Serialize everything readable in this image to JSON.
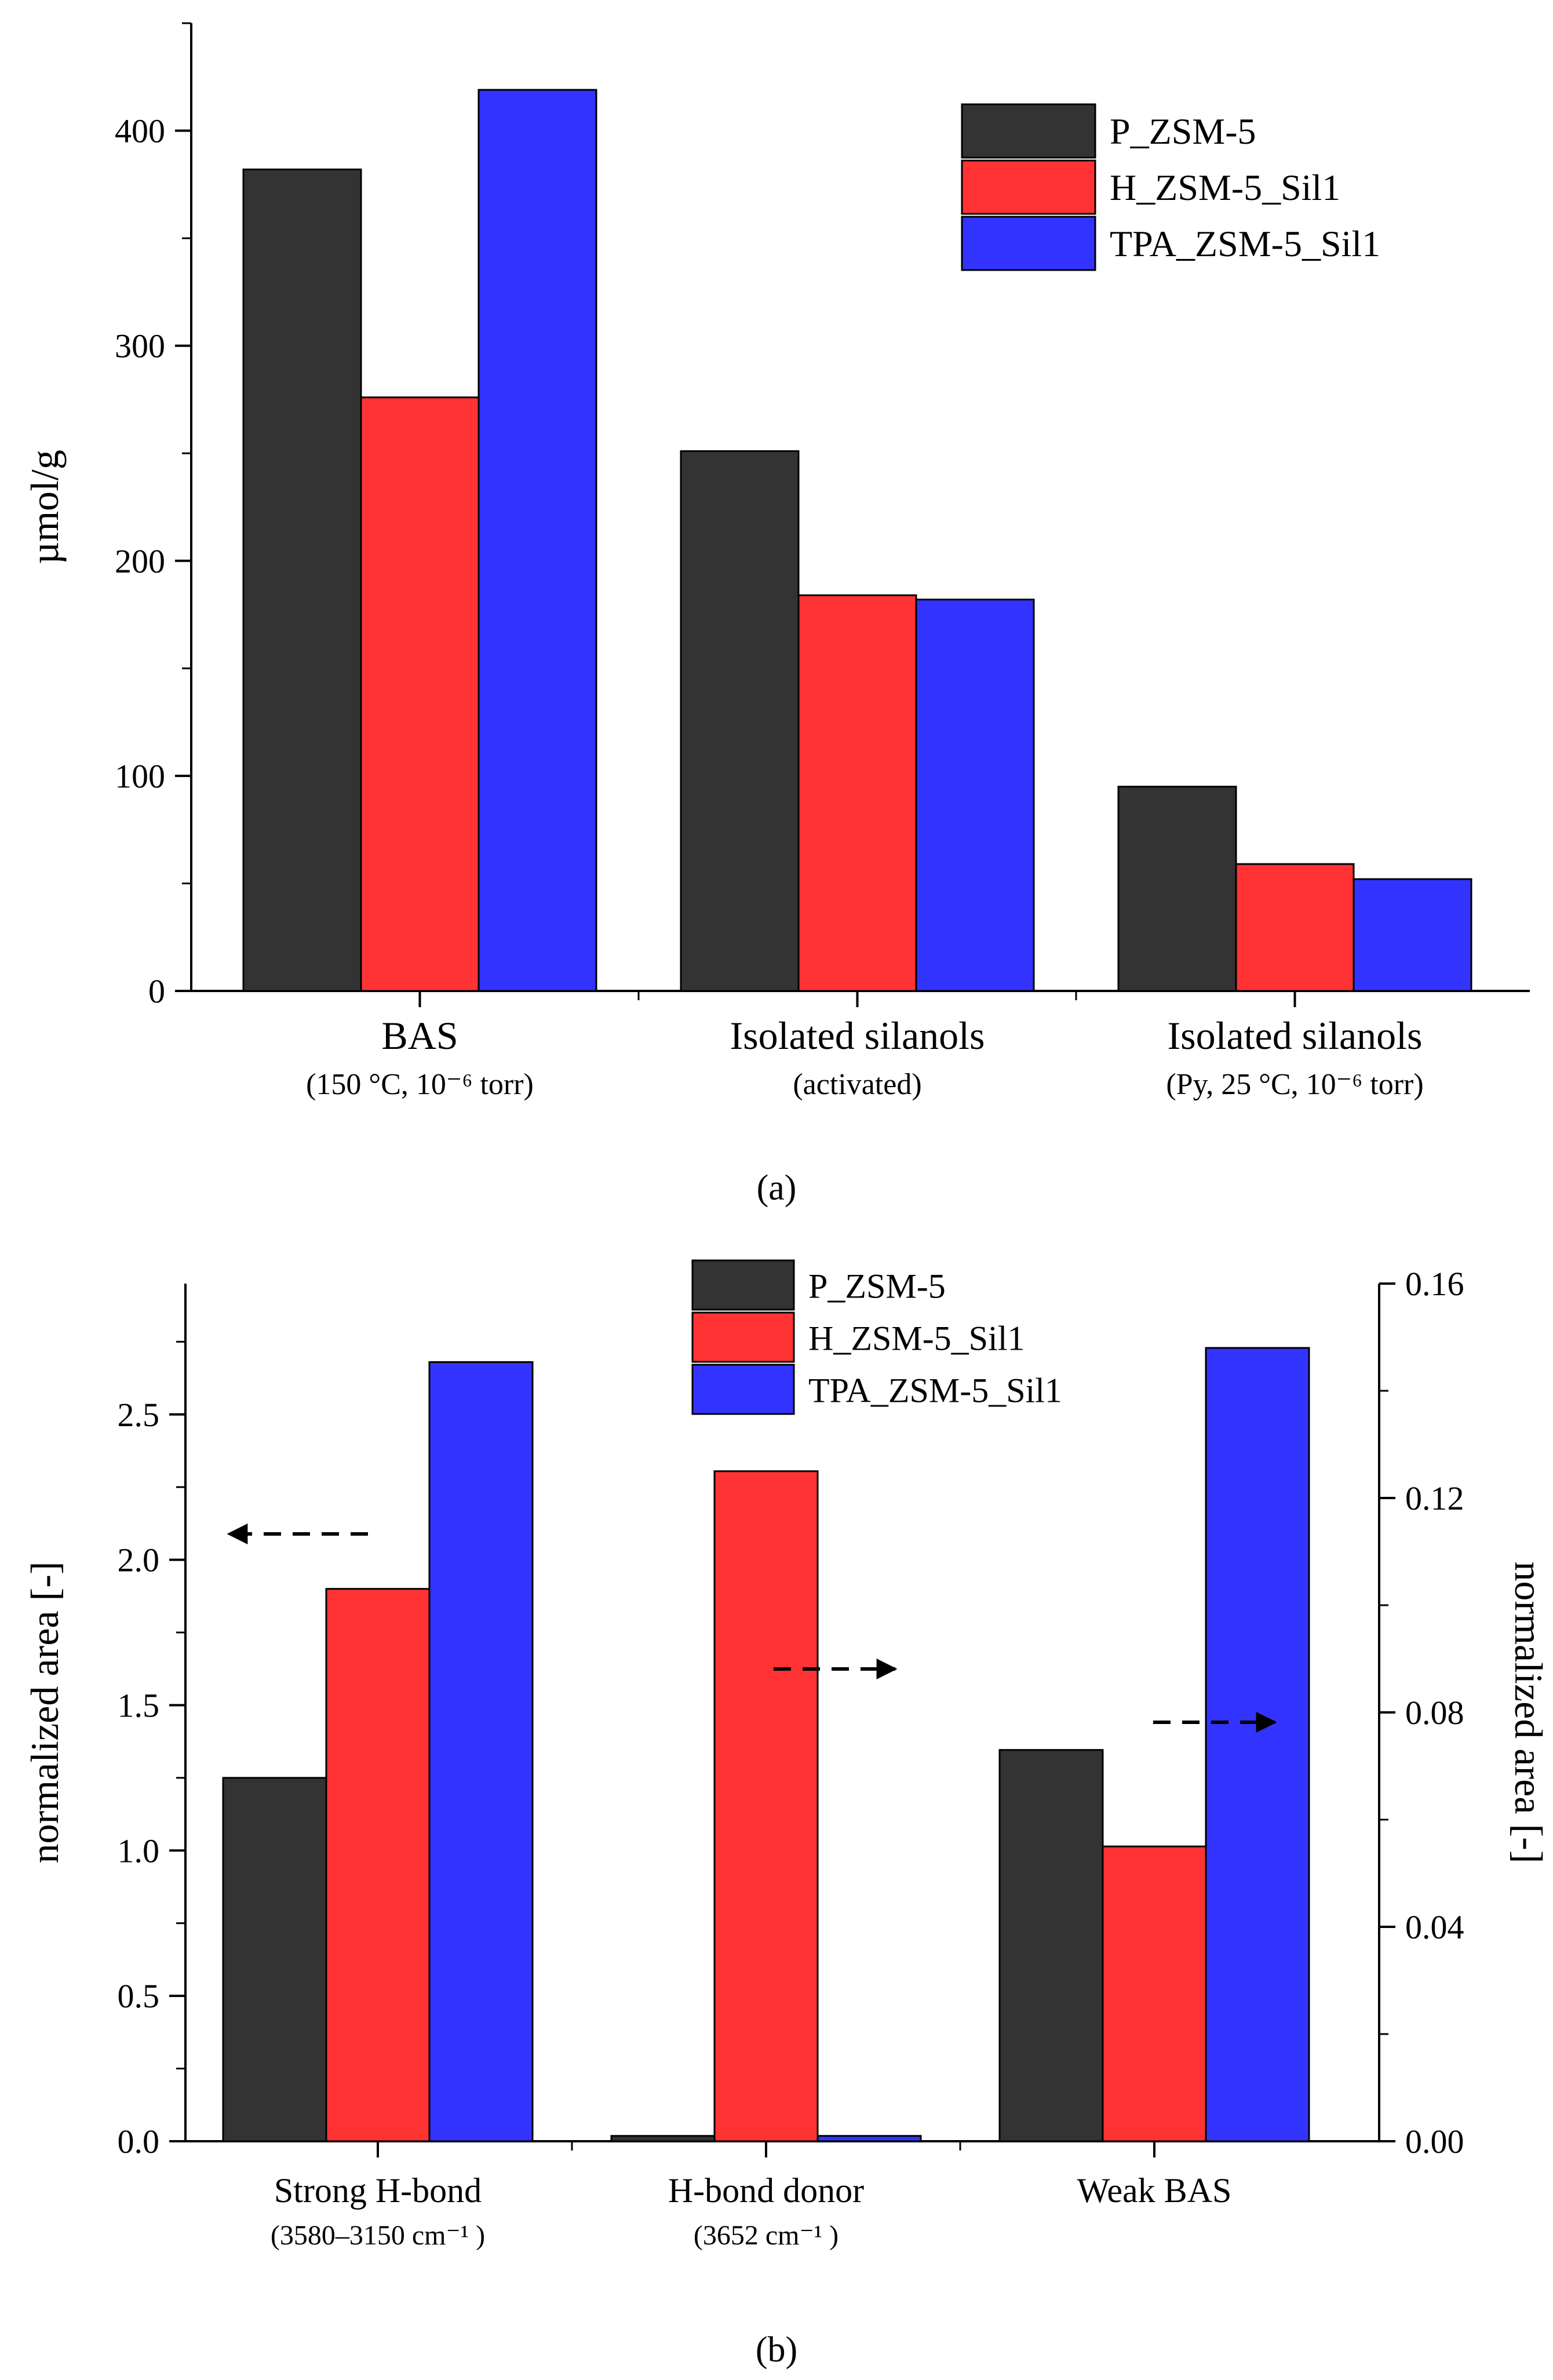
{
  "chart_data": [
    {
      "id": "a",
      "type": "bar",
      "panel_label": "(a)",
      "categories": [
        "BAS",
        "Isolated silanols",
        "Isolated silanols"
      ],
      "category_sublabels": [
        "(150 °C, 10⁻⁶ torr)",
        "(activated)",
        "(Py, 25 °C, 10⁻⁶ torr)"
      ],
      "series": [
        {
          "name": "P_ZSM-5",
          "color": "#333333",
          "values": [
            382,
            251,
            95
          ]
        },
        {
          "name": "H_ZSM-5_Sil1",
          "color": "#ff3333",
          "values": [
            276,
            184,
            59
          ]
        },
        {
          "name": "TPA_ZSM-5_Sil1",
          "color": "#3333ff",
          "values": [
            419,
            182,
            52
          ]
        }
      ],
      "ylabel": "µmol/g",
      "ylim": [
        0,
        450
      ],
      "yticks": [
        0,
        100,
        200,
        300,
        400
      ],
      "ytick_labels": [
        "0",
        "100",
        "200",
        "300",
        "400"
      ],
      "legend_position": "top-right",
      "grid": false
    },
    {
      "id": "b",
      "type": "bar",
      "panel_label": "(b)",
      "categories": [
        "Strong H-bond",
        "H-bond donor",
        "Weak BAS"
      ],
      "category_sublabels": [
        "(3580–3150 cm⁻¹ )",
        "(3652 cm⁻¹ )",
        ""
      ],
      "series": [
        {
          "name": "P_ZSM-5",
          "color": "#333333",
          "values": [
            1.25,
            0.001,
            0.073
          ]
        },
        {
          "name": "H_ZSM-5_Sil1",
          "color": "#ff3333",
          "values": [
            1.9,
            0.125,
            0.055
          ]
        },
        {
          "name": "TPA_ZSM-5_Sil1",
          "color": "#3333ff",
          "values": [
            2.68,
            0.001,
            0.148
          ]
        }
      ],
      "series_axis_by_category": [
        "left",
        "right",
        "right"
      ],
      "ylabel": "normalized area [-]",
      "ylim": [
        0,
        2.95
      ],
      "yticks": [
        0,
        0.5,
        1.0,
        1.5,
        2.0,
        2.5
      ],
      "ytick_labels": [
        "0.0",
        "0.5",
        "1.0",
        "1.5",
        "2.0",
        "2.5"
      ],
      "y2label": "normalized area [-]",
      "y2lim": [
        0,
        0.16
      ],
      "y2ticks": [
        0,
        0.04,
        0.08,
        0.12,
        0.16
      ],
      "y2tick_labels": [
        "0.00",
        "0.04",
        "0.08",
        "0.12",
        "0.16"
      ],
      "axis_arrows": [
        "left",
        "right",
        "right"
      ],
      "legend_position": "top-center",
      "grid": false
    }
  ]
}
